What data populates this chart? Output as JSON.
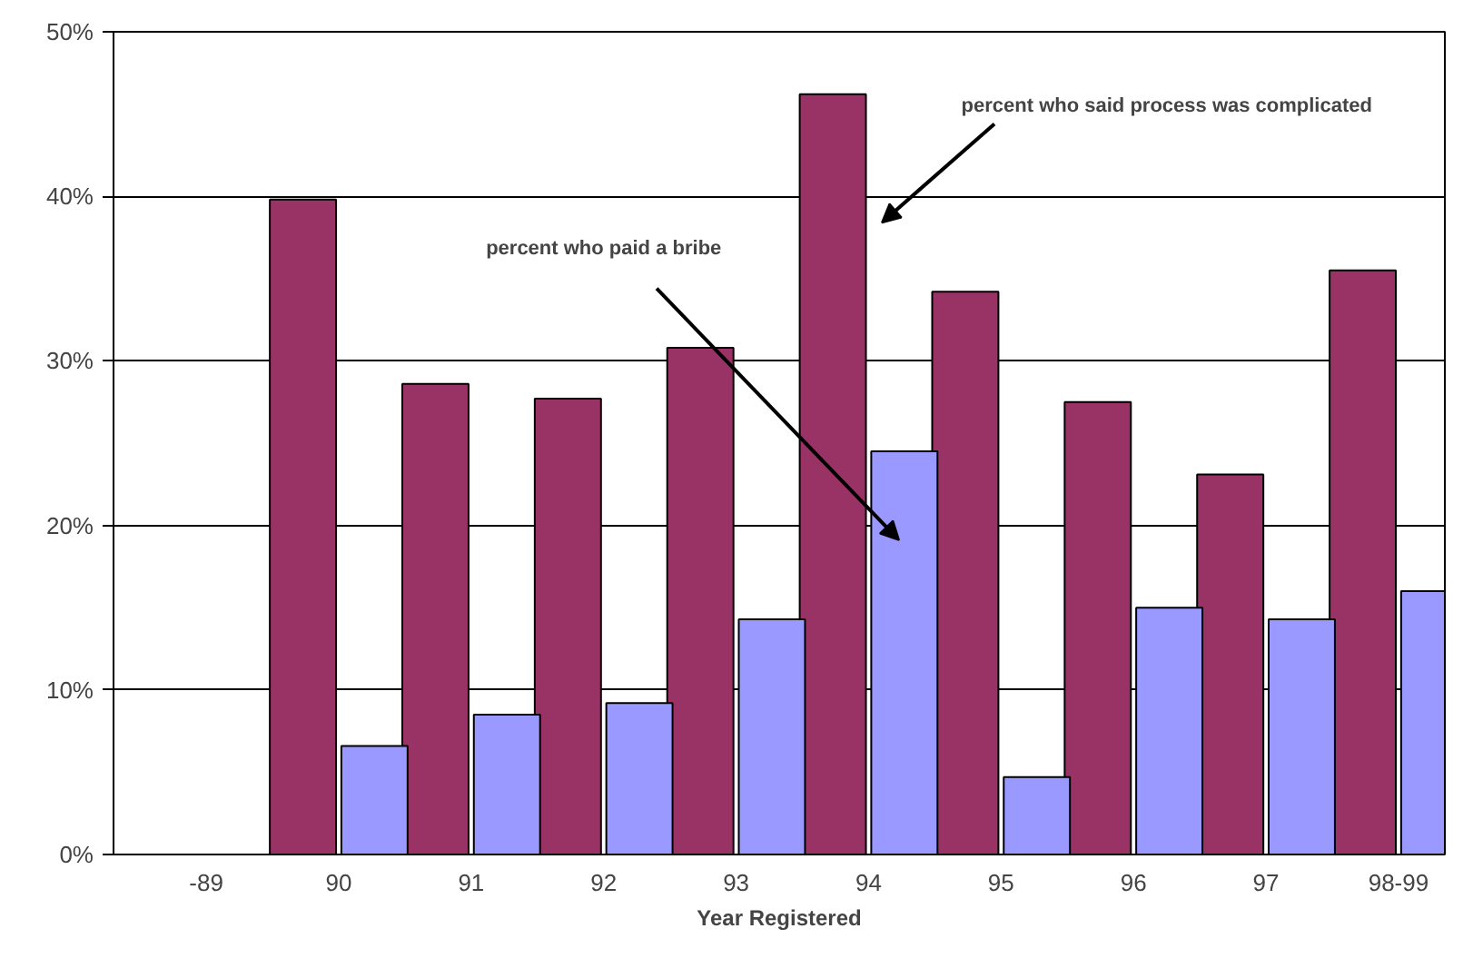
{
  "chart_data": {
    "type": "bar",
    "xlabel": "Year Registered",
    "categories": [
      "-89",
      "90",
      "91",
      "92",
      "93",
      "94",
      "95",
      "96",
      "97",
      "98-99"
    ],
    "series": [
      {
        "color": "#993366",
        "values": [
          null,
          39.8,
          28.6,
          27.7,
          30.8,
          46.2,
          34.2,
          27.5,
          23.1,
          35.5
        ]
      },
      {
        "color": "#9999ff",
        "values": [
          null,
          6.6,
          8.5,
          9.2,
          14.3,
          24.5,
          4.7,
          15.0,
          14.3,
          16.0
        ]
      }
    ],
    "ylim": [
      0,
      50
    ],
    "yticks": [
      {
        "value": 0,
        "label": "0%"
      },
      {
        "value": 10,
        "label": "10%"
      },
      {
        "value": 20,
        "label": "20%"
      },
      {
        "value": 30,
        "label": "30%"
      },
      {
        "value": 40,
        "label": "40%"
      },
      {
        "value": 50,
        "label": "50%"
      }
    ],
    "grid": "y",
    "annotations": [
      "percent who said process was complicated",
      "percent who paid a bribe"
    ]
  }
}
